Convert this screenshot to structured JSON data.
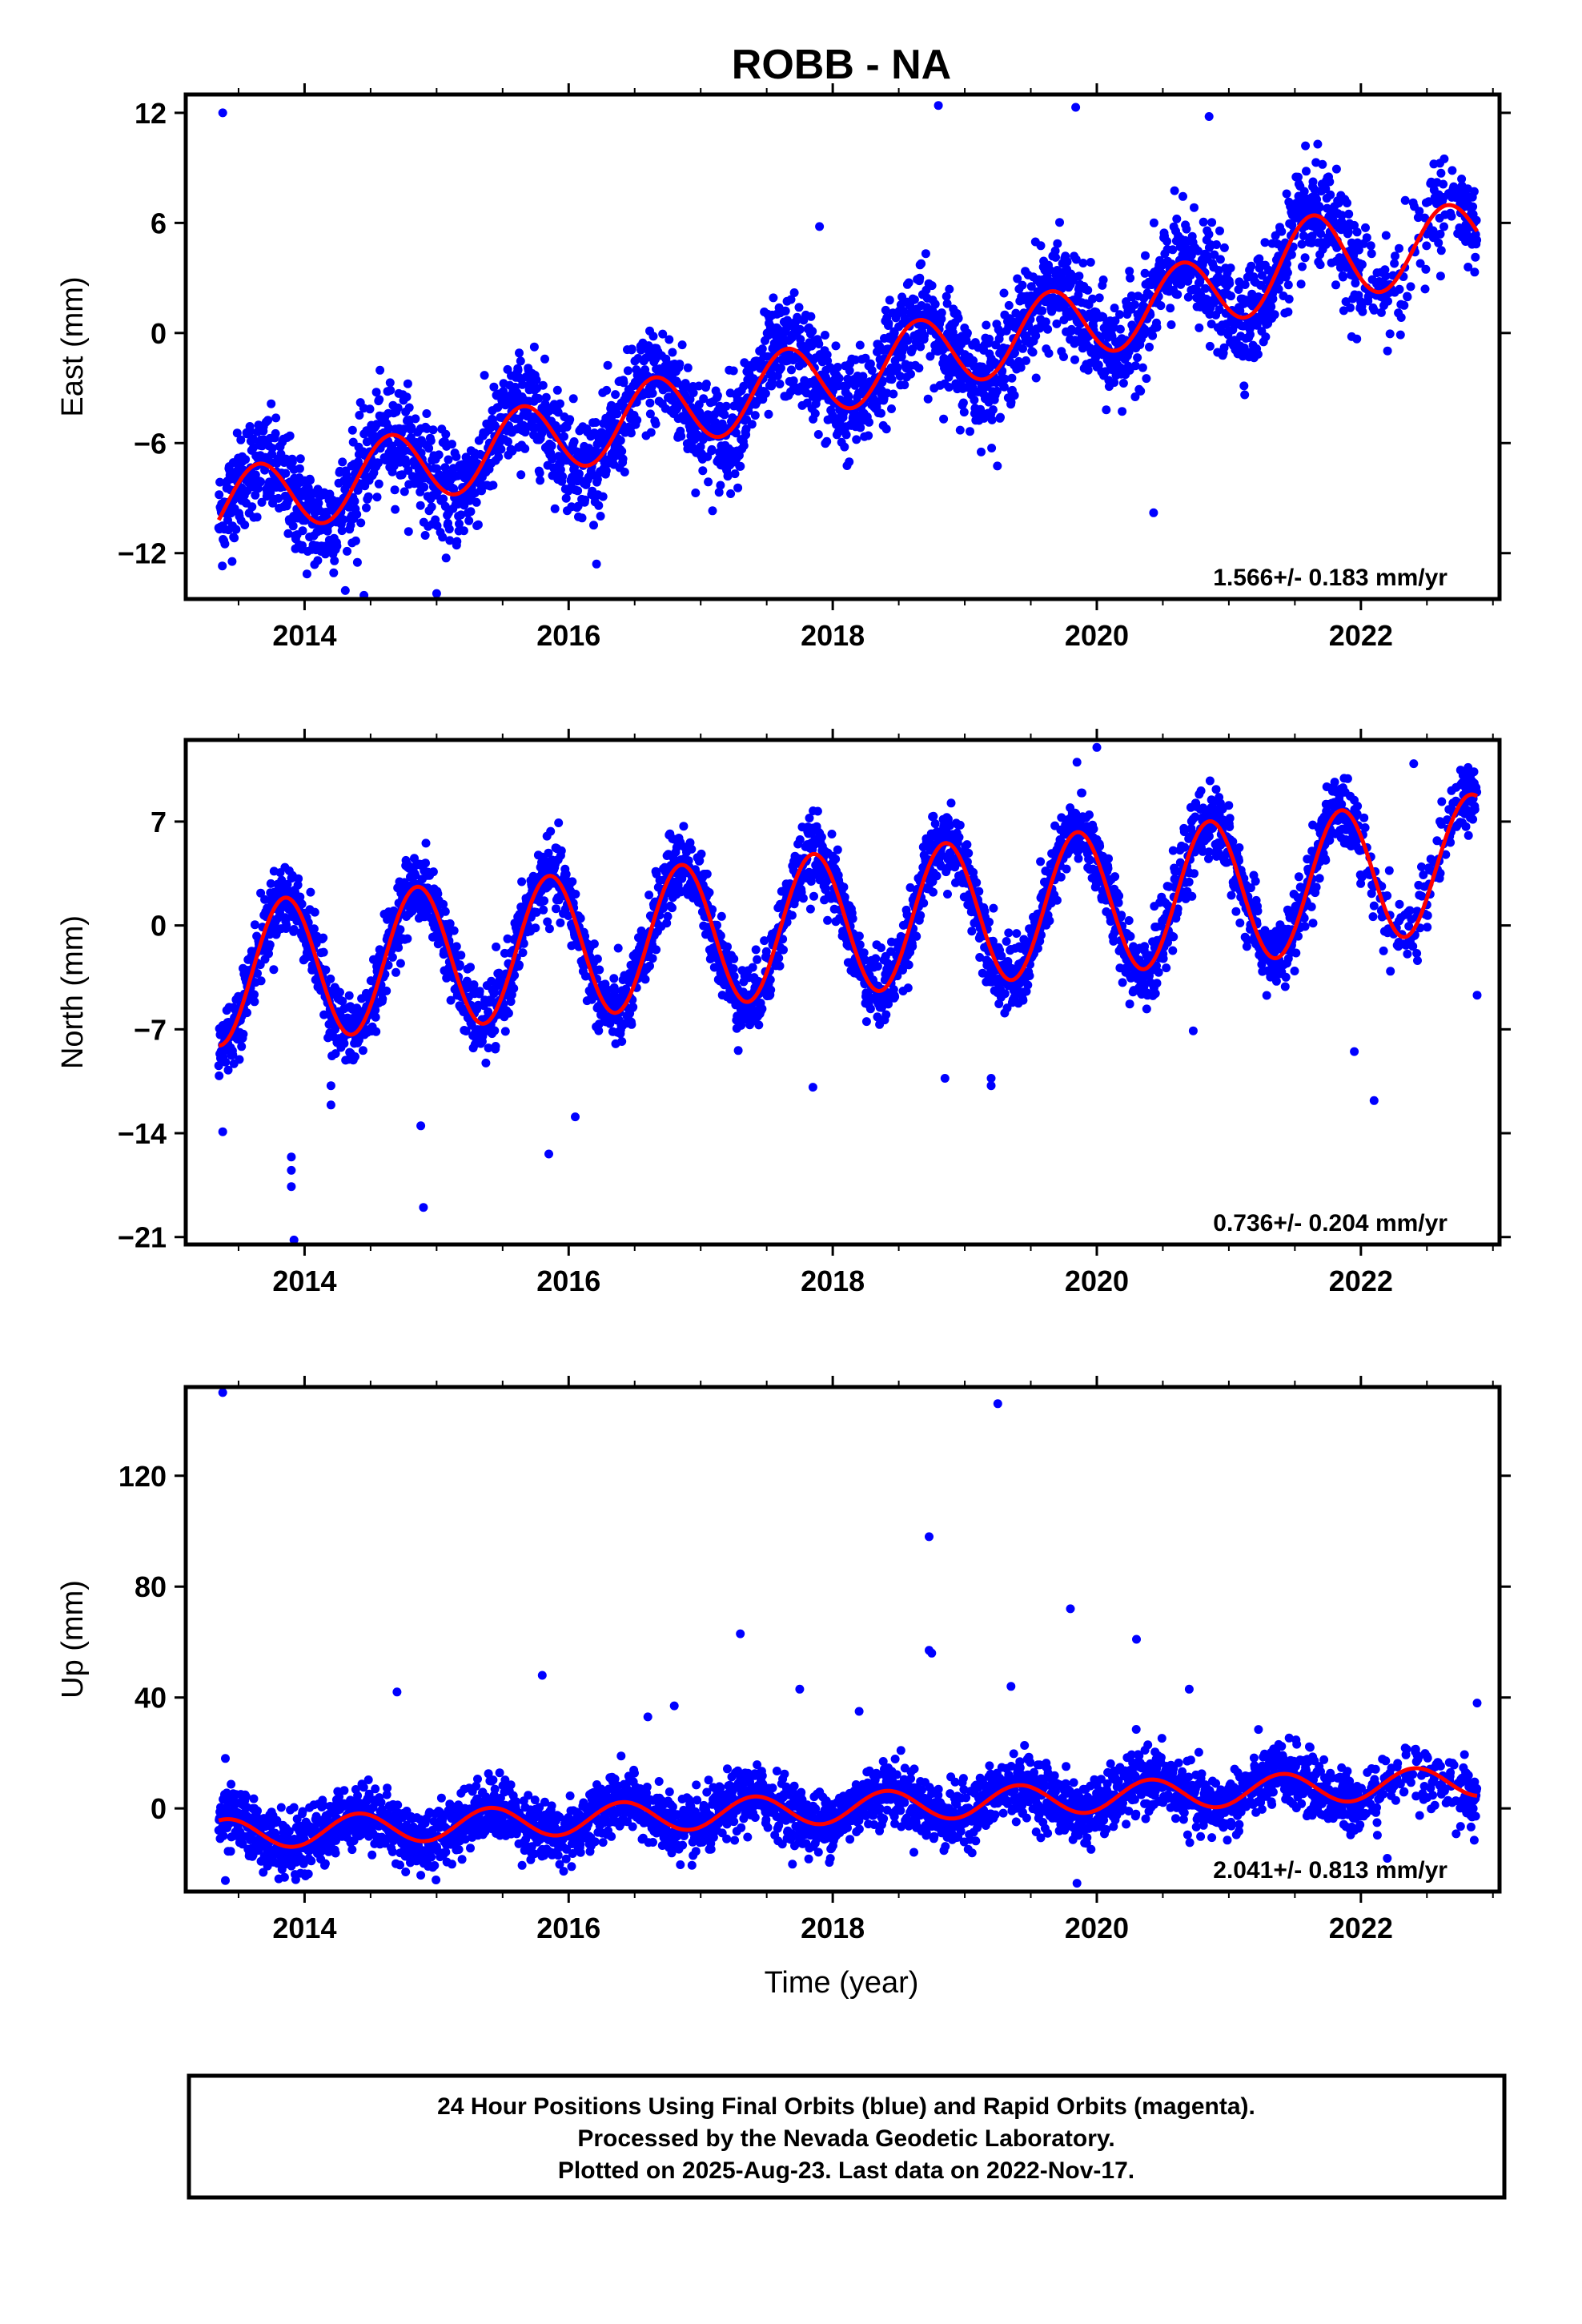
{
  "title": "ROBB - NA",
  "xlabel": "Time (year)",
  "footer": {
    "line1": "24 Hour Positions Using Final Orbits (blue) and Rapid Orbits (magenta).",
    "line2": "Processed by the Nevada Geodetic Laboratory.",
    "line3": "Plotted on 2025-Aug-23. Last data on 2022-Nov-17."
  },
  "colors": {
    "final_points": "#0000ff",
    "model": "#ff0000",
    "rapid_points": "#ff00ff"
  },
  "chart_data": [
    {
      "type": "scatter",
      "panel": "east",
      "ylabel": "East (mm)",
      "xlim": [
        2013.1,
        2023.05
      ],
      "ylim": [
        -14.5,
        13.0
      ],
      "xticks": [
        2014,
        2016,
        2018,
        2020,
        2022
      ],
      "xtick_labels": [
        "2014",
        "2016",
        "2018",
        "2020",
        "2022"
      ],
      "yticks": [
        -12,
        -6,
        0,
        6,
        12
      ],
      "ytick_labels": [
        "−12",
        "−6",
        "0",
        "6",
        "12"
      ],
      "rate_label": "1.566+/- 0.183 mm/yr",
      "data_start": 2013.35,
      "data_end": 2022.88,
      "model": {
        "base_year": 2013.35,
        "intercept": -9.6,
        "rate": 1.566,
        "annual_amp": 2.0,
        "annual_phase": 0.3,
        "extra": [
          {
            "at": 2021.55,
            "value": 1.1,
            "width": 0.35
          }
        ]
      },
      "scatter_sigma": 1.4,
      "outliers": [
        {
          "x": 2013.38,
          "y": 12.0
        },
        {
          "x": 2014.4,
          "y": -12.5
        },
        {
          "x": 2014.1,
          "y": -12.4
        },
        {
          "x": 2014.45,
          "y": -14.3
        },
        {
          "x": 2015.0,
          "y": -14.2
        },
        {
          "x": 2018.8,
          "y": 12.4
        },
        {
          "x": 2019.84,
          "y": 12.3
        },
        {
          "x": 2020.43,
          "y": -9.8
        },
        {
          "x": 2020.85,
          "y": 11.8
        },
        {
          "x": 2021.93,
          "y": -0.2
        },
        {
          "x": 2022.3,
          "y": -0.1
        },
        {
          "x": 2022.35,
          "y": 2.0
        },
        {
          "x": 2017.9,
          "y": 5.8
        },
        {
          "x": 2015.1,
          "y": -7.7
        },
        {
          "x": 2017.15,
          "y": -8.3
        }
      ]
    },
    {
      "type": "scatter",
      "panel": "north",
      "ylabel": "North (mm)",
      "xlim": [
        2013.1,
        2023.05
      ],
      "ylim": [
        -21.5,
        12.5
      ],
      "xticks": [
        2014,
        2016,
        2018,
        2020,
        2022
      ],
      "xtick_labels": [
        "2014",
        "2016",
        "2018",
        "2020",
        "2022"
      ],
      "yticks": [
        -21,
        -14,
        -7,
        0,
        7
      ],
      "ytick_labels": [
        "−21",
        "−14",
        "−7",
        "0",
        "7"
      ],
      "rate_label": "0.736+/- 0.204 mm/yr",
      "data_start": 2013.35,
      "data_end": 2022.88,
      "model": {
        "base_year": 2013.35,
        "intercept": -3.3,
        "rate": 0.736,
        "annual_amp": 4.8,
        "annual_phase": 1.6,
        "extra": [
          {
            "at": 2022.55,
            "value": 1.4,
            "width": 0.25
          }
        ]
      },
      "scatter_sigma": 1.2,
      "outliers": [
        {
          "x": 2013.38,
          "y": -13.9
        },
        {
          "x": 2013.9,
          "y": -15.6
        },
        {
          "x": 2013.9,
          "y": -16.5
        },
        {
          "x": 2013.9,
          "y": -17.6
        },
        {
          "x": 2013.92,
          "y": -21.2
        },
        {
          "x": 2014.2,
          "y": -10.8
        },
        {
          "x": 2014.2,
          "y": -12.1
        },
        {
          "x": 2014.88,
          "y": -13.5
        },
        {
          "x": 2014.9,
          "y": -19.0
        },
        {
          "x": 2015.85,
          "y": -15.4
        },
        {
          "x": 2016.05,
          "y": -12.9
        },
        {
          "x": 2017.85,
          "y": -10.9
        },
        {
          "x": 2019.2,
          "y": -10.3
        },
        {
          "x": 2019.2,
          "y": -10.8
        },
        {
          "x": 2018.85,
          "y": -10.3
        },
        {
          "x": 2020.0,
          "y": 12.0
        },
        {
          "x": 2020.73,
          "y": -7.1
        },
        {
          "x": 2021.95,
          "y": -8.5
        },
        {
          "x": 2022.1,
          "y": -11.8
        },
        {
          "x": 2022.4,
          "y": 10.9
        },
        {
          "x": 2022.88,
          "y": -4.7
        },
        {
          "x": 2019.85,
          "y": 11.0
        }
      ]
    },
    {
      "type": "scatter",
      "panel": "up",
      "ylabel": "Up (mm)",
      "xlim": [
        2013.1,
        2023.05
      ],
      "ylim": [
        -30,
        152
      ],
      "xticks": [
        2014,
        2016,
        2018,
        2020,
        2022
      ],
      "xtick_labels": [
        "2014",
        "2016",
        "2018",
        "2020",
        "2022"
      ],
      "yticks": [
        0,
        40,
        80,
        120
      ],
      "ytick_labels": [
        "0",
        "40",
        "80",
        "120"
      ],
      "rate_label": "2.041+/- 0.813 mm/yr",
      "data_start": 2013.35,
      "data_end": 2022.88,
      "model": {
        "base_year": 2013.35,
        "intercept": -9.5,
        "rate": 2.041,
        "annual_amp": 5.5,
        "annual_phase": -1.2,
        "extra": []
      },
      "scatter_sigma": 5.5,
      "outliers": [
        {
          "x": 2013.38,
          "y": 150
        },
        {
          "x": 2019.25,
          "y": 146
        },
        {
          "x": 2018.73,
          "y": 98
        },
        {
          "x": 2019.8,
          "y": 72
        },
        {
          "x": 2017.3,
          "y": 63
        },
        {
          "x": 2020.3,
          "y": 61
        },
        {
          "x": 2018.73,
          "y": 57
        },
        {
          "x": 2018.75,
          "y": 56
        },
        {
          "x": 2015.8,
          "y": 48
        },
        {
          "x": 2019.35,
          "y": 44
        },
        {
          "x": 2020.7,
          "y": 43
        },
        {
          "x": 2017.75,
          "y": 43
        },
        {
          "x": 2014.7,
          "y": 42
        },
        {
          "x": 2022.88,
          "y": 38
        },
        {
          "x": 2016.8,
          "y": 37
        },
        {
          "x": 2019.85,
          "y": -27
        },
        {
          "x": 2013.4,
          "y": -26
        },
        {
          "x": 2022.2,
          "y": -18
        },
        {
          "x": 2013.4,
          "y": 18
        },
        {
          "x": 2016.6,
          "y": 33
        },
        {
          "x": 2018.2,
          "y": 35
        }
      ]
    }
  ]
}
